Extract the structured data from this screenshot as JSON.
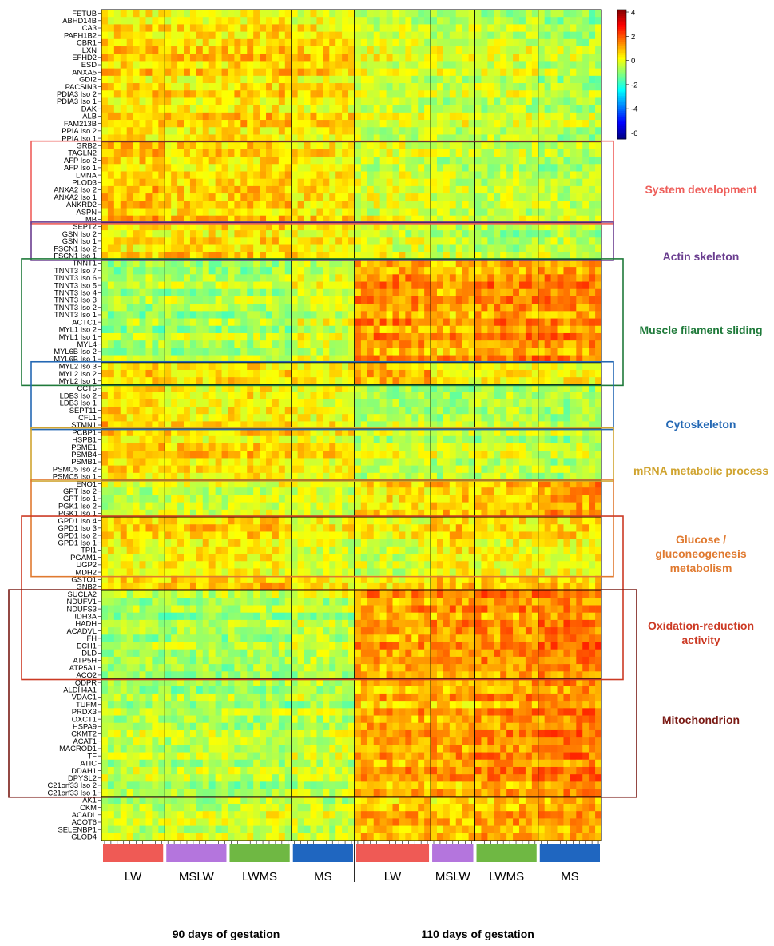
{
  "chart_data": {
    "type": "heatmap",
    "rows": [
      "FETUB",
      "ABHD14B",
      "CA3",
      "PAFH1B2",
      "CBR1",
      "LXN",
      "EFHD2",
      "ESD",
      "ANXA5",
      "GDI2",
      "PACSIN3",
      "PDIA3 Iso 2",
      "PDIA3 Iso 1",
      "DAK",
      "ALB",
      "FAM213B",
      "PPIA Iso 2",
      "PPIA Iso 1",
      "GRB2",
      "TAGLN2",
      "AFP Iso 2",
      "AFP Iso 1",
      "LMNA",
      "PLOD3",
      "ANXA2 Iso 2",
      "ANXA2 Iso 1",
      "ANKRD2",
      "ASPN",
      "MB",
      "SEPT2",
      "GSN Iso 2",
      "GSN Iso 1",
      "FSCN1 Iso 2",
      "FSCN1 Iso 1",
      "TNNT1",
      "TNNT3 Iso 7",
      "TNNT3 Iso 6",
      "TNNT3 Iso 5",
      "TNNT3 Iso 4",
      "TNNT3 Iso 3",
      "TNNT3 Iso 2",
      "TNNT3 Iso 1",
      "ACTC1",
      "MYL1 Iso 2",
      "MYL1 Iso 1",
      "MYL4",
      "MYL6B Iso 2",
      "MYL6B Iso 1",
      "MYL2 Iso 3",
      "MYL2 Iso 2",
      "MYL2 Iso 1",
      "CCT5",
      "LDB3 Iso 2",
      "LDB3 Iso 1",
      "SEPT11",
      "CFL1",
      "STMN1",
      "PCBP1",
      "HSPB1",
      "PSME1",
      "PSMB4",
      "PSMB1",
      "PSMC5 Iso 2",
      "PSMC5 Iso 1",
      "ENO1",
      "GPT Iso 2",
      "GPT Iso 1",
      "PGK1 Iso 2",
      "PGK1 Iso 1",
      "GPD1 Iso 4",
      "GPD1 Iso 3",
      "GPD1 Iso 2",
      "GPD1 Iso 1",
      "TPI1",
      "PGAM1",
      "UGP2",
      "MDH2",
      "GSTO1",
      "GNB2",
      "SUCLA2",
      "NDUFV1",
      "NDUFS3",
      "IDH3A",
      "HADH",
      "ACADVL",
      "FH",
      "ECH1",
      "DLD",
      "ATP5H",
      "ATP5A1",
      "ACO2",
      "QDPR",
      "ALDH4A1",
      "VDAC1",
      "TUFM",
      "PRDX3",
      "OXCT1",
      "HSPA9",
      "CKMT2",
      "ACAT1",
      "MACROD1",
      "TF",
      "ATIC",
      "DDAH1",
      "DPYSL2",
      "C21orf33 Iso 2",
      "C21orf33 Iso 1",
      "AK1",
      "CKM",
      "ACADL",
      "ACOT6",
      "SELENBP1",
      "GLOD4"
    ],
    "groups": [
      {
        "label": "LW",
        "samples": 10,
        "color": "#ef5a55"
      },
      {
        "label": "MSLW",
        "samples": 10,
        "color": "#b475dd"
      },
      {
        "label": "LWMS",
        "samples": 10,
        "color": "#6fb843"
      },
      {
        "label": "MS",
        "samples": 10,
        "color": "#1f66c0"
      },
      {
        "label": "LW",
        "samples": 12,
        "color": "#ef5a55"
      },
      {
        "label": "MSLW",
        "samples": 7,
        "color": "#b475dd"
      },
      {
        "label": "LWMS",
        "samples": 10,
        "color": "#6fb843"
      },
      {
        "label": "MS",
        "samples": 10,
        "color": "#1f66c0"
      }
    ],
    "periods": [
      "90 days of gestation",
      "110 days of gestation"
    ],
    "row_separators_after": [
      "PPIA Iso 1",
      "MB",
      "FSCN1 Iso 1",
      "MYL6B Iso 1",
      "MYL2 Iso 1",
      "STMN1",
      "PSMC5 Iso 1",
      "PGK1 Iso 1",
      "GNB2",
      "ACO2",
      "C21orf33 Iso 1"
    ],
    "block_means": [
      [
        0.6,
        0.5,
        0.6,
        0.4,
        -0.2,
        -0.3,
        -0.3,
        -0.6
      ],
      [
        0.8,
        0.5,
        0.6,
        0.3,
        -0.2,
        -0.4,
        -0.5,
        -0.6
      ],
      [
        0.5,
        0.6,
        0.6,
        0.5,
        -0.1,
        -0.5,
        -0.6,
        -0.4
      ],
      [
        -0.8,
        -0.7,
        -0.7,
        -0.3,
        1.2,
        1.0,
        1.3,
        1.3
      ],
      [
        0.7,
        0.5,
        0.6,
        0.4,
        1.0,
        0.3,
        0.2,
        0.3
      ],
      [
        0.9,
        0.5,
        0.7,
        0.4,
        -0.3,
        -0.4,
        -0.3,
        -0.4
      ],
      [
        0.5,
        0.4,
        0.5,
        0.2,
        -0.4,
        -0.4,
        -0.4,
        -0.6
      ],
      [
        -0.5,
        -0.4,
        -0.3,
        -0.3,
        0.3,
        0.6,
        0.6,
        1.1
      ],
      [
        0.4,
        0.5,
        0.5,
        0.0,
        0.0,
        0.5,
        0.3,
        0.4
      ],
      [
        -0.8,
        -0.8,
        -0.7,
        -0.5,
        1.1,
        1.2,
        1.3,
        1.5
      ],
      [
        -0.6,
        -0.7,
        -0.7,
        -0.5,
        1.0,
        1.0,
        1.2,
        1.4
      ],
      [
        -0.5,
        -0.4,
        -0.3,
        -0.4,
        0.8,
        0.6,
        0.9,
        1.1
      ]
    ],
    "colorbar": {
      "min": -6.5,
      "max": 4.2,
      "ticks": [
        4,
        2,
        0,
        -2,
        -4,
        -6
      ],
      "colormap": "jet"
    }
  },
  "annotations": [
    {
      "text": "System development",
      "color": "#ee5f5b"
    },
    {
      "text": "Actin skeleton",
      "color": "#6a3d8f"
    },
    {
      "text": "Muscle filament sliding",
      "color": "#1f7a3a"
    },
    {
      "text": "Cytoskeleton",
      "color": "#2468b4"
    },
    {
      "text": "mRNA metabolic process",
      "color": "#d0a430"
    },
    {
      "text": "Glucose / gluconeogenesis metabolism",
      "color": "#e07a30"
    },
    {
      "text": "Oxidation-reduction activity",
      "color": "#cc3a24"
    },
    {
      "text": "Mitochondrion",
      "color": "#7a1a14"
    }
  ]
}
